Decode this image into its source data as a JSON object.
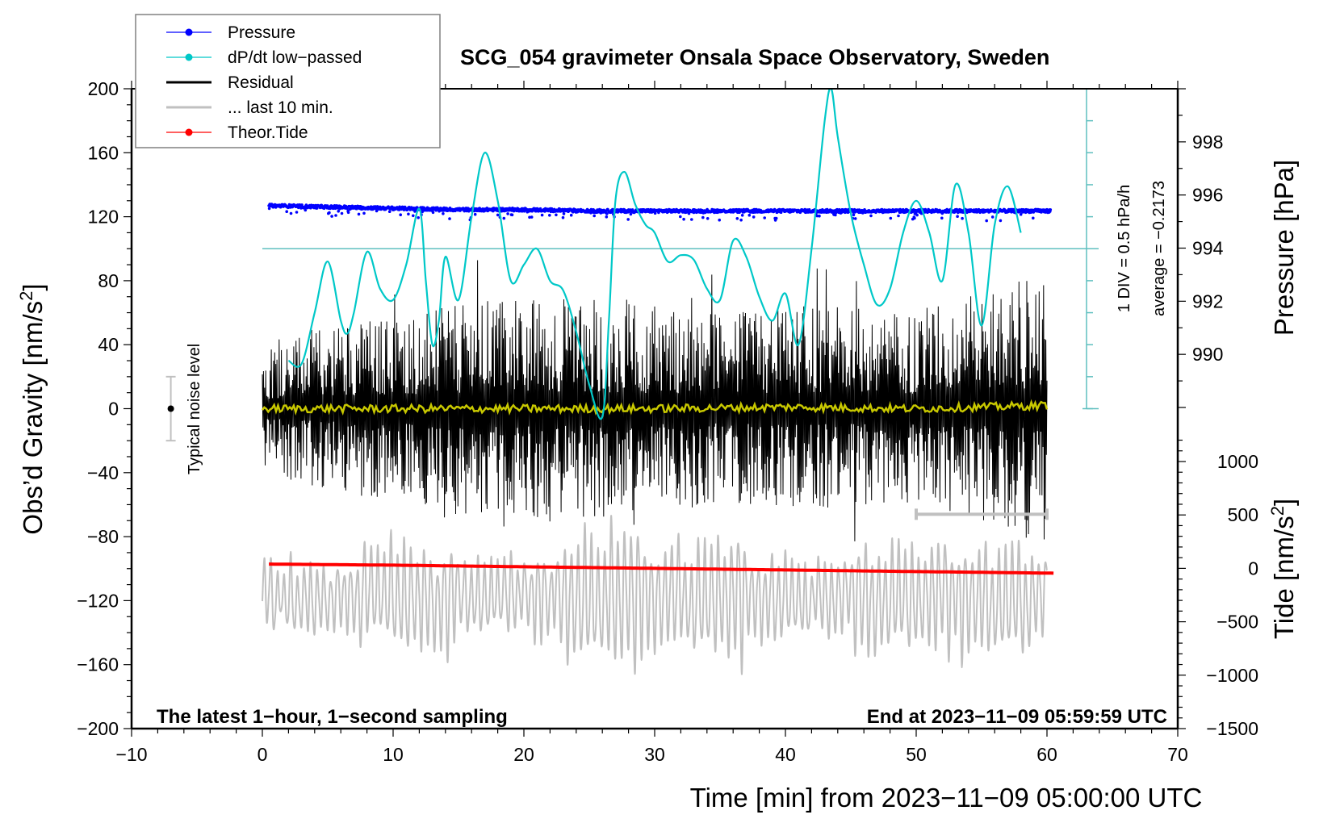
{
  "chart_data": {
    "type": "line",
    "title": "SCG_054 gravimeter Onsala Space Observatory, Sweden",
    "xlabel": "Time [min] from 2023−11−09 05:00:00 UTC",
    "ylabel_left": "Obs’d Gravity [nm/s²]",
    "ylabel_left_main": "Obs’d Gravity [nm/s",
    "ylabel_left_sup": "2",
    "ylabel_left_end": "]",
    "ylabel_right_pressure": "Pressure [hPa]",
    "ylabel_right_tide_main": "Tide [nm/s",
    "ylabel_right_tide_sup": "2",
    "ylabel_right_tide_end": "]",
    "xlim": [
      -10,
      70
    ],
    "ylim": [
      -200,
      200
    ],
    "pressure_lim": [
      988,
      1000
    ],
    "tide_lim": [
      -1500,
      1000
    ],
    "x_ticks": [
      "−10",
      "0",
      "10",
      "20",
      "30",
      "40",
      "50",
      "60",
      "70"
    ],
    "x_tick_values": [
      -10,
      0,
      10,
      20,
      30,
      40,
      50,
      60,
      70
    ],
    "y_ticks": [
      "200",
      "160",
      "120",
      "80",
      "40",
      "0",
      "−40",
      "−80",
      "−120",
      "−160",
      "−200"
    ],
    "y_tick_values": [
      200,
      160,
      120,
      80,
      40,
      0,
      -40,
      -80,
      -120,
      -160,
      -200
    ],
    "pressure_ticks": [
      "998",
      "996",
      "994",
      "992",
      "990"
    ],
    "pressure_tick_values": [
      998,
      996,
      994,
      992,
      990
    ],
    "tide_ticks": [
      "1000",
      "500",
      "0",
      "−500",
      "−1000",
      "−1500"
    ],
    "tide_tick_values": [
      1000,
      500,
      0,
      -500,
      -1000,
      -1500
    ],
    "grid": false,
    "legend_position": "top-left",
    "legend": [
      {
        "label": "Pressure",
        "color": "#0000ff",
        "marker": true
      },
      {
        "label": "dP/dt low−passed",
        "color": "#00c8c8",
        "marker": true
      },
      {
        "label": "Residual",
        "color": "#000000",
        "marker": false
      },
      {
        "label": "... last 10 min.",
        "color": "#c0c0c0",
        "marker": false
      },
      {
        "label": "Theor.Tide",
        "color": "#ff0000",
        "marker": true
      }
    ],
    "annotations": {
      "bottom_left": "The latest 1−hour, 1−second sampling",
      "bottom_right": "End at 2023−11−09 05:59:59 UTC",
      "noise_label": "Typical noise level",
      "dpdt_scale": "1 DIV = 0.5 hPa/h",
      "dpdt_average": "average = −0.2173"
    },
    "noise_level": {
      "x": -7,
      "center": 0,
      "low": -20,
      "high": 20
    },
    "last10_bar": {
      "x_start": 50,
      "x_end": 60,
      "y": -66
    },
    "dpdt_axis": {
      "x": 63,
      "zero_gravity_units": 100,
      "div_hPa_per_h": 0.5,
      "div_gravity_units": 20
    },
    "series": [
      {
        "name": "Pressure",
        "color": "#0000ff",
        "axis": "pressure",
        "x": [
          0.5,
          5,
          10,
          15,
          20,
          25,
          30,
          35,
          40,
          45,
          50,
          55,
          60.3
        ],
        "values": [
          995.6,
          995.55,
          995.5,
          995.45,
          995.45,
          995.4,
          995.4,
          995.4,
          995.4,
          995.4,
          995.4,
          995.4,
          995.4
        ]
      },
      {
        "name": "dP/dt low-passed",
        "color": "#00c8c8",
        "axis": "gravity",
        "x": [
          2.0,
          3.0,
          4.0,
          5.0,
          6.0,
          6.5,
          7.0,
          8.0,
          9.0,
          10.0,
          11.0,
          12.0,
          12.5,
          13.0,
          13.5,
          14.0,
          15.0,
          16.0,
          17.0,
          18.0,
          19.0,
          20.0,
          21.0,
          22.0,
          23.0,
          24.0,
          25.0,
          26.0,
          26.5,
          27.0,
          27.7,
          28.5,
          29.3,
          30.0,
          31.0,
          32.0,
          33.0,
          34.0,
          35.0,
          36.0,
          37.0,
          38.0,
          39.0,
          40.0,
          41.0,
          42.0,
          43.0,
          43.5,
          44.0,
          45.0,
          46.0,
          47.0,
          48.0,
          49.0,
          50.0,
          51.0,
          52.0,
          53.0,
          54.0,
          55.0,
          56.0,
          57.0,
          58.0
        ],
        "values": [
          30,
          28,
          60,
          92,
          55,
          47,
          60,
          98,
          75,
          68,
          90,
          125,
          80,
          40,
          55,
          95,
          68,
          120,
          160,
          130,
          80,
          90,
          100,
          80,
          74,
          48,
          15,
          -5,
          55,
          130,
          148,
          128,
          115,
          110,
          92,
          96,
          93,
          75,
          68,
          105,
          95,
          70,
          55,
          72,
          40,
          100,
          180,
          200,
          170,
          122,
          90,
          65,
          75,
          110,
          130,
          110,
          80,
          140,
          110,
          52,
          115,
          139,
          110
        ]
      },
      {
        "name": "Residual",
        "color": "#000000",
        "axis": "gravity",
        "x_range": [
          0,
          60
        ],
        "envelope": [
          40,
          55,
          60,
          70,
          70,
          65,
          60,
          65,
          60,
          70,
          85
        ],
        "envelope_x": [
          0,
          6,
          12,
          18,
          24,
          30,
          36,
          42,
          48,
          54,
          60
        ]
      },
      {
        "name": "Residual low-passed",
        "color": "#c8c800",
        "axis": "gravity",
        "x": [
          0,
          10,
          20,
          30,
          40,
          50,
          60
        ],
        "values": [
          0,
          0,
          0,
          0,
          1,
          0,
          2
        ]
      },
      {
        "name": "... last 10 min.",
        "color": "#c0c0c0",
        "axis": "gravity",
        "x_range": [
          0,
          60
        ],
        "center": -118,
        "envelope": [
          25,
          40,
          30,
          50,
          45,
          30,
          40,
          40,
          70
        ]
      },
      {
        "name": "Theor.Tide",
        "color": "#ff0000",
        "axis": "tide",
        "x": [
          0.5,
          10,
          20,
          30,
          40,
          50,
          60.5
        ],
        "values": [
          40,
          30,
          15,
          0,
          -15,
          -30,
          -45
        ]
      }
    ]
  }
}
